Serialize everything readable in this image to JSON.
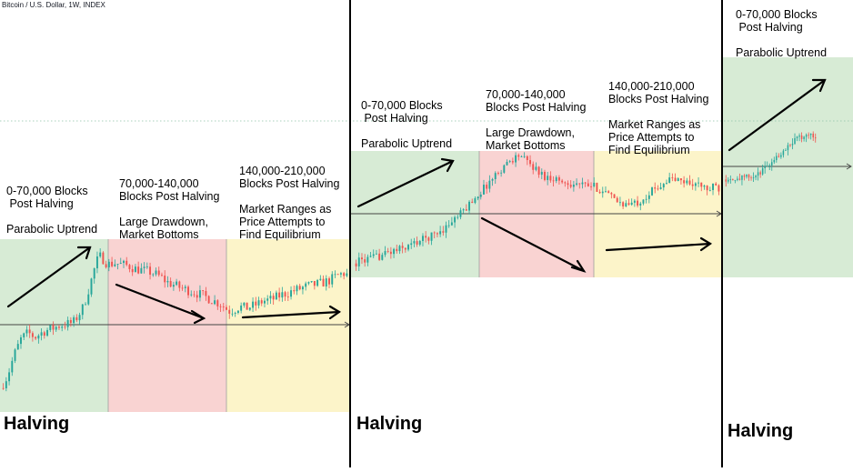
{
  "chart_title": "Bitcoin / U.S. Dollar, 1W, INDEX",
  "colors": {
    "up": "#26a69a",
    "down": "#ef5350",
    "parabolic_zone": "#d7ebd5",
    "drawdown_zone": "#f9d3d2",
    "range_zone": "#fcf4c9",
    "divider": "#000000"
  },
  "annotations": {
    "c1_z1": [
      "0-70,000 Blocks",
      " Post Halving",
      "",
      "Parabolic Uptrend"
    ],
    "c1_z2": [
      "70,000-140,000",
      "Blocks Post Halving",
      "",
      "Large Drawdown,",
      "Market Bottoms"
    ],
    "c1_z3": [
      "140,000-210,000",
      "Blocks Post Halving",
      "",
      "Market Ranges as",
      "Price Attempts to",
      "Find Equilibrium"
    ],
    "c2_z1": [
      "0-70,000 Blocks",
      " Post Halving",
      "",
      "Parabolic Uptrend"
    ],
    "c2_z2": [
      "70,000-140,000",
      "Blocks Post Halving",
      "",
      "Large Drawdown,",
      "Market Bottoms"
    ],
    "c2_z3": [
      "140,000-210,000",
      "Blocks Post Halving",
      "",
      "Market Ranges as",
      "Price Attempts to",
      "Find Equilibrium"
    ],
    "c3_z1": [
      "0-70,000 Blocks",
      " Post Halving",
      "",
      "Parabolic Uptrend"
    ]
  },
  "halving_labels": [
    "Halving",
    "Halving",
    "Halving"
  ],
  "chart_data": [
    {
      "type": "candlestick",
      "title": "Bitcoin / U.S. Dollar, 1W, INDEX",
      "phases": [
        "Parabolic Uptrend",
        "Large Drawdown, Market Bottoms",
        "Market Ranges as Price Attempts to Find Equilibrium"
      ],
      "close_path": [
        [
          0,
          0.02
        ],
        [
          0.04,
          0.1
        ],
        [
          0.08,
          0.25
        ],
        [
          0.12,
          0.36
        ],
        [
          0.16,
          0.4
        ],
        [
          0.2,
          0.37
        ],
        [
          0.25,
          0.41
        ],
        [
          0.3,
          0.43
        ],
        [
          0.34,
          0.45
        ],
        [
          0.38,
          0.46
        ],
        [
          0.42,
          0.47
        ],
        [
          0.45,
          0.52
        ],
        [
          0.48,
          0.58
        ],
        [
          0.5,
          0.66
        ],
        [
          0.52,
          0.74
        ],
        [
          0.55,
          0.87
        ],
        [
          0.57,
          0.93
        ],
        [
          0.6,
          0.9
        ],
        [
          0.62,
          0.87
        ],
        [
          0.66,
          0.88
        ],
        [
          0.7,
          0.87
        ],
        [
          0.74,
          0.86
        ],
        [
          0.78,
          0.84
        ],
        [
          0.82,
          0.83
        ],
        [
          0.86,
          0.82
        ],
        [
          0.9,
          0.8
        ],
        [
          0.93,
          0.78
        ],
        [
          0.96,
          0.75
        ],
        [
          1,
          0.73
        ],
        [
          1.04,
          0.71
        ],
        [
          1.09,
          0.69
        ],
        [
          1.14,
          0.67
        ],
        [
          1.18,
          0.65
        ],
        [
          1.23,
          0.62
        ],
        [
          1.27,
          0.6
        ],
        [
          1.32,
          0.55
        ],
        [
          1.35,
          0.56
        ],
        [
          1.38,
          0.58
        ],
        [
          1.42,
          0.57
        ],
        [
          1.47,
          0.59
        ],
        [
          1.52,
          0.62
        ],
        [
          1.57,
          0.63
        ],
        [
          1.62,
          0.66
        ],
        [
          1.67,
          0.68
        ],
        [
          1.72,
          0.7
        ],
        [
          1.77,
          0.72
        ],
        [
          1.81,
          0.73
        ],
        [
          1.85,
          0.74
        ],
        [
          1.9,
          0.76
        ],
        [
          1.94,
          0.79
        ],
        [
          1.98,
          0.81
        ],
        [
          2,
          0.8
        ]
      ]
    },
    {
      "type": "candlestick",
      "title": "Bitcoin / U.S. Dollar, 1W, INDEX",
      "phases": [
        "Parabolic Uptrend",
        "Large Drawdown, Market Bottoms",
        "Market Ranges as Price Attempts to Find Equilibrium"
      ],
      "close_path": [
        [
          0,
          0.05
        ],
        [
          0.05,
          0.08
        ],
        [
          0.1,
          0.09
        ],
        [
          0.15,
          0.12
        ],
        [
          0.2,
          0.15
        ],
        [
          0.25,
          0.17
        ],
        [
          0.3,
          0.2
        ],
        [
          0.35,
          0.24
        ],
        [
          0.4,
          0.27
        ],
        [
          0.45,
          0.31
        ],
        [
          0.5,
          0.36
        ],
        [
          0.55,
          0.43
        ],
        [
          0.6,
          0.5
        ],
        [
          0.65,
          0.6
        ],
        [
          0.7,
          0.68
        ],
        [
          0.75,
          0.77
        ],
        [
          0.8,
          0.86
        ],
        [
          0.85,
          0.94
        ],
        [
          0.88,
          0.97
        ],
        [
          0.91,
          1.0
        ],
        [
          0.94,
          0.95
        ],
        [
          0.98,
          0.9
        ],
        [
          1.02,
          0.84
        ],
        [
          1.06,
          0.8
        ],
        [
          1.1,
          0.8
        ],
        [
          1.14,
          0.76
        ],
        [
          1.2,
          0.75
        ],
        [
          1.26,
          0.73
        ],
        [
          1.32,
          0.72
        ],
        [
          1.38,
          0.67
        ],
        [
          1.43,
          0.6
        ],
        [
          1.47,
          0.58
        ],
        [
          1.5,
          0.56
        ],
        [
          1.55,
          0.58
        ],
        [
          1.6,
          0.64
        ],
        [
          1.65,
          0.7
        ],
        [
          1.7,
          0.76
        ],
        [
          1.74,
          0.79
        ],
        [
          1.78,
          0.77
        ],
        [
          1.83,
          0.76
        ],
        [
          1.88,
          0.74
        ],
        [
          1.92,
          0.71
        ],
        [
          1.95,
          0.69
        ],
        [
          1.98,
          0.73
        ],
        [
          2,
          0.7
        ]
      ]
    },
    {
      "type": "candlestick",
      "title": "Bitcoin / U.S. Dollar, 1W, INDEX",
      "phases": [
        "Parabolic Uptrend"
      ],
      "close_path": [
        [
          0,
          0.1
        ],
        [
          0.05,
          0.11
        ],
        [
          0.1,
          0.12
        ],
        [
          0.15,
          0.12
        ],
        [
          0.2,
          0.14
        ],
        [
          0.25,
          0.13
        ],
        [
          0.3,
          0.15
        ],
        [
          0.35,
          0.22
        ],
        [
          0.4,
          0.3
        ],
        [
          0.45,
          0.38
        ],
        [
          0.5,
          0.44
        ],
        [
          0.55,
          0.52
        ],
        [
          0.6,
          0.6
        ],
        [
          0.65,
          0.67
        ],
        [
          0.7,
          0.7
        ],
        [
          0.75,
          0.73
        ],
        [
          0.8,
          0.74
        ],
        [
          0.84,
          0.71
        ]
      ]
    }
  ]
}
